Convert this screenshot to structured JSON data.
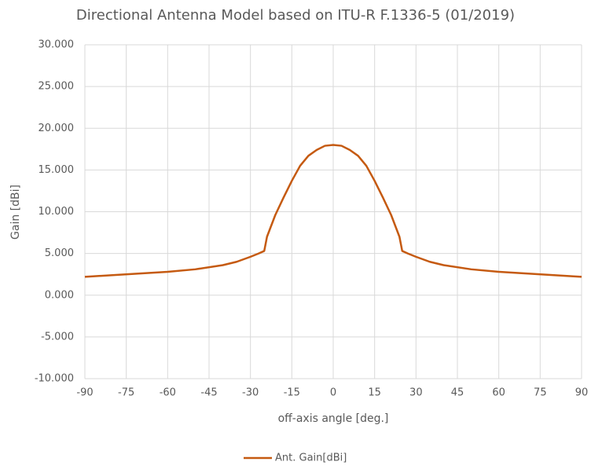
{
  "chart_data": {
    "type": "line",
    "title": "Directional Antenna Model based on ITU-R F.1336-5 (01/2019)",
    "x_label": "off-axis angle [deg.]",
    "y_label": "Gain [dBi]",
    "x": [
      -90,
      -80,
      -70,
      -60,
      -50,
      -40,
      -35,
      -30,
      -27,
      -25,
      -24,
      -21,
      -18,
      -15,
      -12,
      -9,
      -6,
      -3,
      0,
      3,
      6,
      9,
      12,
      15,
      18,
      21,
      24,
      25,
      27,
      30,
      35,
      40,
      50,
      60,
      70,
      80,
      90
    ],
    "series": [
      {
        "name": "Ant. Gain[dBi]",
        "color": "#c55a11",
        "values": [
          2.2,
          2.4,
          2.6,
          2.8,
          3.1,
          3.6,
          4.0,
          4.6,
          5.0,
          5.3,
          7.0,
          9.6,
          11.7,
          13.7,
          15.5,
          16.7,
          17.4,
          17.9,
          18.0,
          17.9,
          17.4,
          16.7,
          15.5,
          13.7,
          11.7,
          9.6,
          7.0,
          5.3,
          5.0,
          4.6,
          4.0,
          3.6,
          3.1,
          2.8,
          2.6,
          2.4,
          2.2
        ]
      }
    ],
    "xlim": [
      -90,
      90
    ],
    "xticks": [
      -90,
      -75,
      -60,
      -45,
      -30,
      -15,
      0,
      15,
      30,
      45,
      60,
      75,
      90
    ],
    "ylim": [
      -10,
      30
    ],
    "yticks": [
      {
        "value": -10,
        "label": "-10.000"
      },
      {
        "value": -5,
        "label": "-5.000"
      },
      {
        "value": 0,
        "label": "0.000"
      },
      {
        "value": 5,
        "label": "5.000"
      },
      {
        "value": 10,
        "label": "10.000"
      },
      {
        "value": 15,
        "label": "15.000"
      },
      {
        "value": 20,
        "label": "20.000"
      },
      {
        "value": 25,
        "label": "25.000"
      },
      {
        "value": 30,
        "label": "30.000"
      }
    ],
    "grid": true,
    "legend": "bottom"
  }
}
